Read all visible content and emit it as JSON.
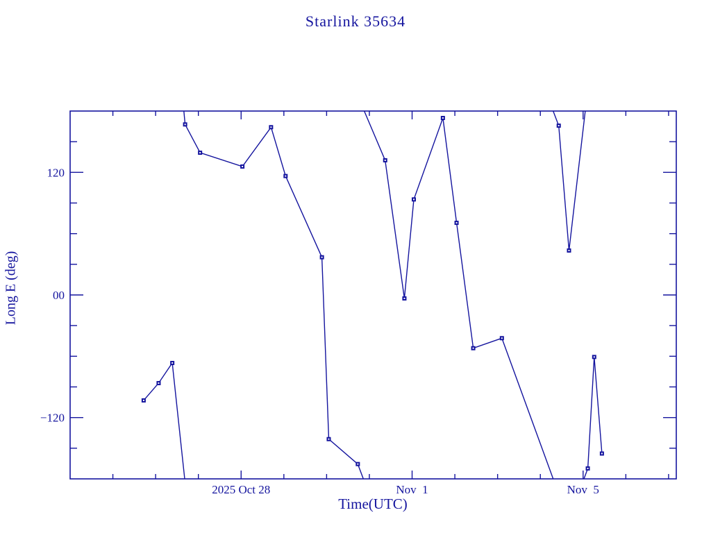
{
  "chart_data": {
    "type": "line",
    "title": "Starlink 35634",
    "xlabel": "Time(UTC)",
    "ylabel": "Long E (deg)",
    "color": "#14149e",
    "background": "#ffffff",
    "grid": false,
    "legend": null,
    "marker": "filled-square-with-white-center",
    "x_unit": "days since 2025 Oct 24 00:00 UTC",
    "xlim": [
      0,
      14.18
    ],
    "ylim": [
      -180,
      180
    ],
    "x_major_ticks": [
      {
        "t": 4,
        "label": "2025 Oct 28"
      },
      {
        "t": 8,
        "label": "Nov  1"
      },
      {
        "t": 12,
        "label": "Nov  5"
      }
    ],
    "x_minor_tick_step": 1,
    "y_major_ticks": [
      {
        "v": 120,
        "label": "120"
      },
      {
        "v": 0,
        "label": "00"
      },
      {
        "v": -120,
        "label": "-120"
      }
    ],
    "y_minor_tick_step": 30,
    "segments": [
      {
        "enter": null,
        "points": [
          [
            1.72,
            -103.2
          ],
          [
            2.07,
            -86.3
          ],
          [
            2.39,
            -66.6
          ]
        ],
        "exit": [
          2.68,
          -180
        ]
      },
      {
        "enter": [
          2.66,
          180
        ],
        "points": [
          [
            2.69,
            166.9
          ],
          [
            3.04,
            139.2
          ],
          [
            4.03,
            125.7
          ],
          [
            4.7,
            164.2
          ],
          [
            5.04,
            116.4
          ],
          [
            5.89,
            36.9
          ],
          [
            6.05,
            -141.1
          ],
          [
            6.73,
            -165.5
          ]
        ],
        "exit": [
          6.86,
          -180
        ]
      },
      {
        "enter": [
          6.88,
          180
        ],
        "points": [
          [
            7.37,
            131.8
          ],
          [
            7.82,
            -3.4
          ],
          [
            8.04,
            93.5
          ],
          [
            8.72,
            173.2
          ],
          [
            9.04,
            70.6
          ],
          [
            9.43,
            -52.1
          ],
          [
            10.1,
            -42.3
          ]
        ],
        "exit": [
          11.3,
          -180
        ]
      },
      {
        "enter": [
          11.3,
          180
        ],
        "points": [
          [
            11.43,
            165.7
          ],
          [
            11.67,
            43.5
          ]
        ],
        "exit": [
          12.05,
          180
        ]
      },
      {
        "enter": [
          12.02,
          -180
        ],
        "points": [
          [
            12.11,
            -169.8
          ],
          [
            12.26,
            -60.7
          ],
          [
            12.44,
            -155.2
          ]
        ],
        "exit": null
      }
    ]
  }
}
